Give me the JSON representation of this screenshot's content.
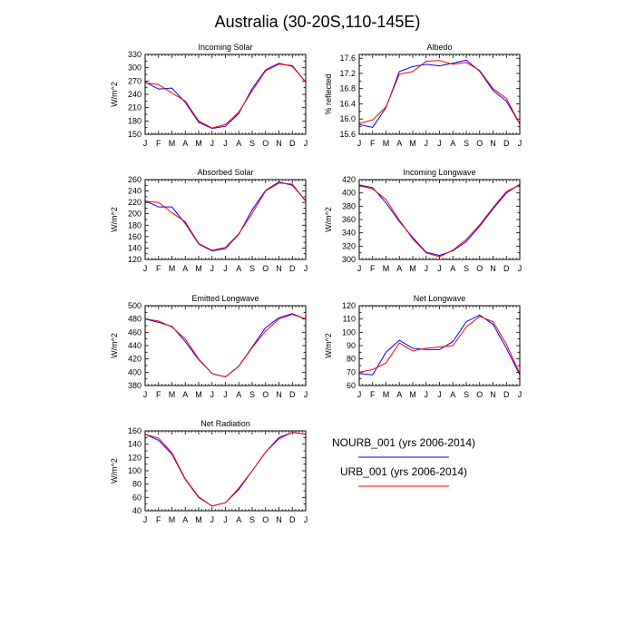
{
  "figure": {
    "title": "Australia (30-20S,110-145E)"
  },
  "legend": {
    "entries": [
      {
        "name": "NOURB_001 (yrs 2006-2014)",
        "color": "#0000ff"
      },
      {
        "name": "URB_001 (yrs 2006-2014)",
        "color": "#ff0000"
      }
    ]
  },
  "chart_data": [
    {
      "type": "line",
      "title": "Incoming Solar",
      "ylabel": "W/m^2",
      "categories": [
        "J",
        "F",
        "M",
        "A",
        "M",
        "J",
        "J",
        "A",
        "S",
        "O",
        "N",
        "D",
        "J"
      ],
      "ylim": [
        150,
        330
      ],
      "yticks": [
        150,
        165,
        180,
        195,
        210,
        225,
        240,
        255,
        270,
        285,
        300,
        315,
        330
      ],
      "ytick_labels": [
        "150",
        "",
        "180",
        "",
        "210",
        "",
        "240",
        "",
        "270",
        "",
        "300",
        "",
        "330"
      ],
      "series": [
        {
          "name": "NOURB_001 (yrs 2006-2014)",
          "color": "#0000ff",
          "values": [
            268,
            252,
            254,
            222,
            177,
            163,
            168,
            197,
            253,
            295,
            310,
            303,
            268
          ]
        },
        {
          "name": "URB_001 (yrs 2006-2014)",
          "color": "#ff0000",
          "values": [
            266,
            262,
            243,
            225,
            180,
            164,
            172,
            200,
            248,
            293,
            308,
            305,
            267
          ]
        }
      ]
    },
    {
      "type": "line",
      "title": "Albedo",
      "ylabel": "% reflected",
      "categories": [
        "J",
        "F",
        "M",
        "A",
        "M",
        "J",
        "J",
        "A",
        "S",
        "O",
        "N",
        "D",
        "J"
      ],
      "ylim": [
        15.6,
        17.7
      ],
      "yticks": [
        15.6,
        15.8,
        16.0,
        16.2,
        16.4,
        16.6,
        16.8,
        17.0,
        17.2,
        17.4,
        17.6
      ],
      "ytick_labels": [
        "15.6",
        "",
        "16.0",
        "",
        "16.4",
        "",
        "16.8",
        "",
        "17.2",
        "",
        "17.6"
      ],
      "series": [
        {
          "name": "NOURB_001 (yrs 2006-2014)",
          "color": "#0000ff",
          "values": [
            15.86,
            15.78,
            16.3,
            17.25,
            17.38,
            17.44,
            17.4,
            17.47,
            17.55,
            17.26,
            16.75,
            16.47,
            15.87
          ]
        },
        {
          "name": "URB_001 (yrs 2006-2014)",
          "color": "#ff0000",
          "values": [
            15.88,
            15.98,
            16.32,
            17.18,
            17.25,
            17.52,
            17.54,
            17.44,
            17.49,
            17.28,
            16.8,
            16.54,
            15.87
          ]
        }
      ]
    },
    {
      "type": "line",
      "title": "Absorbed Solar",
      "ylabel": "W/m^2",
      "categories": [
        "J",
        "F",
        "M",
        "A",
        "M",
        "J",
        "J",
        "A",
        "S",
        "O",
        "N",
        "D",
        "J"
      ],
      "ylim": [
        120,
        260
      ],
      "yticks": [
        120,
        130,
        140,
        150,
        160,
        170,
        180,
        190,
        200,
        210,
        220,
        230,
        240,
        250,
        260
      ],
      "ytick_labels": [
        "120",
        "",
        "140",
        "",
        "160",
        "",
        "180",
        "",
        "200",
        "",
        "220",
        "",
        "240",
        "",
        "260"
      ],
      "series": [
        {
          "name": "NOURB_001 (yrs 2006-2014)",
          "color": "#0000ff",
          "values": [
            223,
            212,
            212,
            183,
            147,
            135,
            139,
            164,
            207,
            241,
            256,
            250,
            223
          ]
        },
        {
          "name": "URB_001 (yrs 2006-2014)",
          "color": "#ff0000",
          "values": [
            222,
            220,
            202,
            186,
            148,
            136,
            141,
            165,
            201,
            240,
            254,
            252,
            222
          ]
        }
      ]
    },
    {
      "type": "line",
      "title": "Incoming Longwave",
      "ylabel": "W/m^2",
      "categories": [
        "J",
        "F",
        "M",
        "A",
        "M",
        "J",
        "J",
        "A",
        "S",
        "O",
        "N",
        "D",
        "J"
      ],
      "ylim": [
        300,
        420
      ],
      "yticks": [
        300,
        310,
        320,
        330,
        340,
        350,
        360,
        370,
        380,
        390,
        400,
        410,
        420
      ],
      "ytick_labels": [
        "300",
        "",
        "320",
        "",
        "340",
        "",
        "360",
        "",
        "380",
        "",
        "400",
        "",
        "420"
      ],
      "series": [
        {
          "name": "NOURB_001 (yrs 2006-2014)",
          "color": "#0000ff",
          "values": [
            412,
            408,
            385,
            357,
            333,
            311,
            306,
            313,
            327,
            350,
            376,
            400,
            413
          ]
        },
        {
          "name": "URB_001 (yrs 2006-2014)",
          "color": "#ff0000",
          "values": [
            411,
            406,
            390,
            359,
            331,
            310,
            304,
            314,
            330,
            352,
            378,
            402,
            412
          ]
        }
      ]
    },
    {
      "type": "line",
      "title": "Emitted Longwave",
      "ylabel": "W/m^2",
      "categories": [
        "J",
        "F",
        "M",
        "A",
        "M",
        "J",
        "J",
        "A",
        "S",
        "O",
        "N",
        "D",
        "J"
      ],
      "ylim": [
        380,
        500
      ],
      "yticks": [
        380,
        390,
        400,
        410,
        420,
        430,
        440,
        450,
        460,
        470,
        480,
        490,
        500
      ],
      "ytick_labels": [
        "380",
        "",
        "400",
        "",
        "420",
        "",
        "440",
        "",
        "460",
        "",
        "480",
        "",
        "500"
      ],
      "series": [
        {
          "name": "NOURB_001 (yrs 2006-2014)",
          "color": "#0000ff",
          "values": [
            480,
            475,
            469,
            446,
            419,
            398,
            393,
            409,
            438,
            467,
            482,
            488,
            480
          ]
        },
        {
          "name": "URB_001 (yrs 2006-2014)",
          "color": "#ff0000",
          "values": [
            480,
            477,
            468,
            450,
            420,
            398,
            393,
            409,
            437,
            462,
            480,
            487,
            480
          ]
        }
      ]
    },
    {
      "type": "line",
      "title": "Net Longwave",
      "ylabel": "W/m^2",
      "categories": [
        "J",
        "F",
        "M",
        "A",
        "M",
        "J",
        "J",
        "A",
        "S",
        "O",
        "N",
        "D",
        "J"
      ],
      "ylim": [
        60,
        120
      ],
      "yticks": [
        60,
        65,
        70,
        75,
        80,
        85,
        90,
        95,
        100,
        105,
        110,
        115,
        120
      ],
      "ytick_labels": [
        "60",
        "",
        "70",
        "",
        "80",
        "",
        "90",
        "",
        "100",
        "",
        "110",
        "",
        "120"
      ],
      "series": [
        {
          "name": "NOURB_001 (yrs 2006-2014)",
          "color": "#0000ff",
          "values": [
            69,
            68,
            85,
            94,
            88,
            87,
            87,
            93,
            108,
            113,
            106,
            88,
            68
          ]
        },
        {
          "name": "URB_001 (yrs 2006-2014)",
          "color": "#ff0000",
          "values": [
            70,
            72,
            77,
            92,
            86,
            88,
            89,
            90,
            104,
            112,
            108,
            91,
            69
          ]
        }
      ]
    },
    {
      "type": "line",
      "title": "Net Radiation",
      "ylabel": "W/m^2",
      "categories": [
        "J",
        "F",
        "M",
        "A",
        "M",
        "J",
        "J",
        "A",
        "S",
        "O",
        "N",
        "D",
        "J"
      ],
      "ylim": [
        40,
        160
      ],
      "yticks": [
        40,
        50,
        60,
        70,
        80,
        90,
        100,
        110,
        120,
        130,
        140,
        150,
        160
      ],
      "ytick_labels": [
        "40",
        "",
        "60",
        "",
        "80",
        "",
        "100",
        "",
        "120",
        "",
        "140",
        "",
        "160"
      ],
      "series": [
        {
          "name": "NOURB_001 (yrs 2006-2014)",
          "color": "#0000ff",
          "values": [
            155,
            146,
            125,
            87,
            60,
            47,
            52,
            72,
            100,
            128,
            150,
            158,
            155
          ]
        },
        {
          "name": "URB_001 (yrs 2006-2014)",
          "color": "#ff0000",
          "values": [
            155,
            149,
            127,
            88,
            61,
            47,
            52,
            74,
            100,
            128,
            148,
            158,
            155
          ]
        }
      ]
    }
  ]
}
